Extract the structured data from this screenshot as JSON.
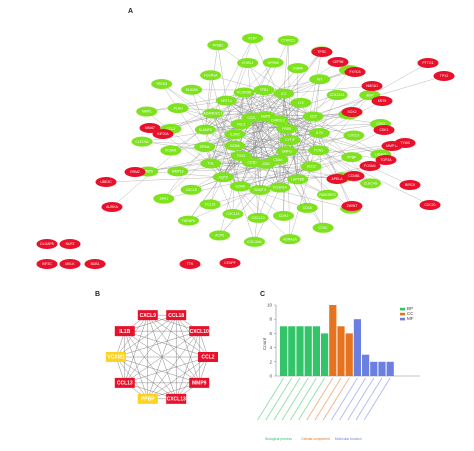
{
  "panels": {
    "a": "A",
    "b": "B",
    "c": "C"
  },
  "colors": {
    "green": "#7ee21e",
    "red": "#e8102a",
    "yellow": "#ffd21e",
    "edge": "#8a8a8a",
    "bp": "#33c46a",
    "cc": "#e8731e",
    "mf": "#6b7fe0"
  },
  "network_a": {
    "nodes_green": [
      "TPSB2",
      "PLTP",
      "CTHRC1",
      "PLA2G7",
      "FHSG",
      "IBSP",
      "CPA3",
      "LAMP3",
      "CLEC4G",
      "C5AR1",
      "CTSC",
      "ADRA2A",
      "COL10A1",
      "ACP5",
      "TNFAIP6",
      "SPP1",
      "MMP9",
      "CLEC5A",
      "MMP1",
      "TREM1",
      "CHI3L1",
      "GPR65",
      "OSMR",
      "KIT",
      "COL11A1",
      "CCL18",
      "CXCL9",
      "PPBP",
      "IL1B",
      "RASGRP2",
      "CD1B",
      "CDH1",
      "CXCL10",
      "CXCL13",
      "CCL13",
      "CXCL5",
      "MMP12",
      "VCAM1",
      "CCL2",
      "PLAU",
      "S100A8",
      "FCGR3A",
      "FCGR3B",
      "TFB1",
      "ICJ",
      "LYZ",
      "CD2",
      "IL7R",
      "FCN1",
      "SCD2",
      "LAPTM5",
      "FCGR1A",
      "SDMT3",
      "GZMK",
      "AQP9",
      "TGL",
      "SPIN4",
      "SLAMF8",
      "ADAMDEC1",
      "HRT14",
      "CYTIP",
      "GMFG",
      "CD8A",
      "CD52",
      "CD3D",
      "TOX2",
      "GZMA",
      "IL2RG",
      "FGL2",
      "CCR7",
      "GBP5",
      "CHRDL2",
      "PRR4"
    ],
    "nodes_red": [
      "TFRC",
      "CEP55",
      "FXYD3",
      "HMGA1",
      "KRT5",
      "SOX2",
      "CDK1",
      "MMP11",
      "TOP2A",
      "FOXM1",
      "CCNB1",
      "APELA",
      "PTTG1",
      "TPX2",
      "BIRC5",
      "CDC20",
      "MKI67",
      "KIF20A",
      "RRM2",
      "UBE2C",
      "AURKA",
      "TTK",
      "ZWINT",
      "DLGAP5",
      "NUF2",
      "KIF2C",
      "MELK",
      "BUB1",
      "CENPF",
      "TYMS"
    ]
  },
  "network_b": {
    "nodes": [
      "CXCL9",
      "CCL18",
      "CXCL10",
      "CCL2",
      "MMP9",
      "CXCL13",
      "PPBP",
      "CCL13",
      "VCAM1",
      "IL1B"
    ],
    "top_labels": [
      "CXCL9",
      "CCL18"
    ]
  },
  "chart_c": {
    "ylabel": "Count",
    "yticks": [
      "0",
      "2",
      "4",
      "6",
      "8",
      "10"
    ],
    "legend": [
      "BP",
      "CC",
      "MF"
    ],
    "groups": [
      "Biological process",
      "Cellular component",
      "Molecular function"
    ]
  },
  "chart_data": {
    "type": "bar",
    "ylabel": "Count",
    "ylim": [
      0,
      10
    ],
    "legend_placement": "top-right",
    "series": [
      {
        "name": "BP",
        "values": [
          7,
          7,
          7,
          7,
          7,
          6
        ]
      },
      {
        "name": "CC",
        "values": [
          10,
          7,
          6
        ]
      },
      {
        "name": "MF",
        "values": [
          8,
          3,
          2,
          2,
          2
        ]
      }
    ],
    "groups": [
      "Biological process",
      "Cellular component",
      "Molecular function"
    ]
  }
}
